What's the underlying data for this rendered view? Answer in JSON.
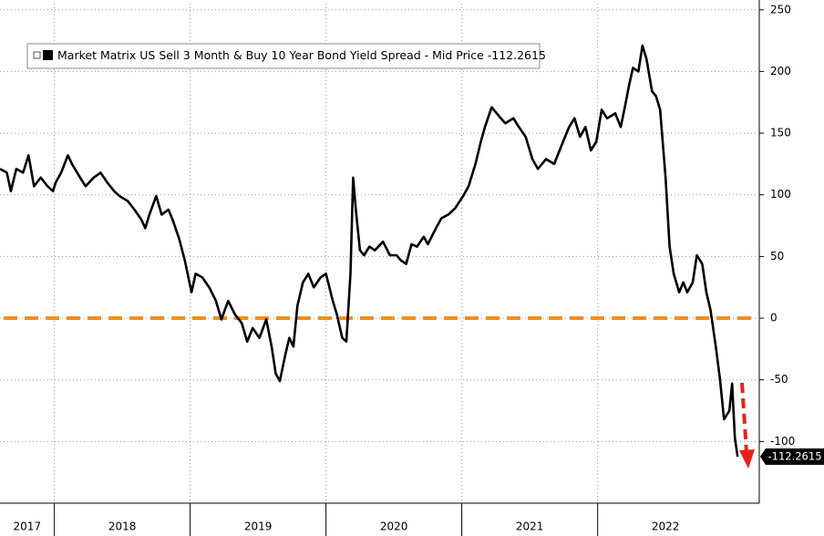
{
  "chart_data": {
    "type": "line",
    "xlim": [
      2017.6,
      2023.19
    ],
    "xticks": [
      {
        "value": 2017.6,
        "label": "2017"
      },
      2018,
      2019,
      2020,
      2021,
      2022
    ],
    "ylim": [
      -150,
      255
    ],
    "yticks": [
      -100,
      -50,
      0,
      50,
      100,
      150,
      200,
      250
    ],
    "grid": true,
    "reference_line": {
      "value": 0,
      "color": "#f0901a"
    },
    "series": [
      {
        "name": "Market Matrix US Sell 3 Month & Buy 10 Year Bond Yield Spread - Mid Price -112.2615",
        "color": "#000000",
        "x": [
          2017.6,
          2017.65,
          2017.68,
          2017.72,
          2017.77,
          2017.81,
          2017.85,
          2017.9,
          2017.95,
          2017.99,
          2018.01,
          2018.05,
          2018.1,
          2018.13,
          2018.19,
          2018.23,
          2018.29,
          2018.34,
          2018.39,
          2018.44,
          2018.48,
          2018.54,
          2018.59,
          2018.64,
          2018.67,
          2018.7,
          2018.75,
          2018.79,
          2018.84,
          2018.87,
          2018.92,
          2018.96,
          2019.01,
          2019.04,
          2019.09,
          2019.14,
          2019.19,
          2019.23,
          2019.28,
          2019.33,
          2019.38,
          2019.42,
          2019.46,
          2019.51,
          2019.56,
          2019.6,
          2019.63,
          2019.66,
          2019.7,
          2019.73,
          2019.76,
          2019.79,
          2019.83,
          2019.87,
          2019.91,
          2019.96,
          2020.0,
          2020.05,
          2020.08,
          2020.12,
          2020.15,
          2020.18,
          2020.2,
          2020.22,
          2020.25,
          2020.28,
          2020.32,
          2020.36,
          2020.42,
          2020.47,
          2020.52,
          2020.55,
          2020.59,
          2020.63,
          2020.67,
          2020.72,
          2020.75,
          2020.81,
          2020.85,
          2020.9,
          2020.95,
          2021.01,
          2021.05,
          2021.1,
          2021.14,
          2021.17,
          2021.22,
          2021.28,
          2021.32,
          2021.38,
          2021.42,
          2021.47,
          2021.52,
          2021.56,
          2021.59,
          2021.62,
          2021.68,
          2021.72,
          2021.76,
          2021.79,
          2021.83,
          2021.87,
          2021.91,
          2021.95,
          2021.99,
          2022.03,
          2022.07,
          2022.13,
          2022.17,
          2022.2,
          2022.23,
          2022.26,
          2022.3,
          2022.33,
          2022.36,
          2022.4,
          2022.43,
          2022.46,
          2022.5,
          2022.53,
          2022.56,
          2022.6,
          2022.63,
          2022.66,
          2022.7,
          2022.73,
          2022.77,
          2022.8,
          2022.83,
          2022.87,
          2022.9,
          2022.93,
          2022.97,
          2022.99,
          2023.01,
          2023.03
        ],
        "values": [
          121,
          118,
          103,
          121,
          118,
          132,
          107,
          114,
          107,
          103,
          110,
          118,
          132,
          125,
          114,
          107,
          114,
          118,
          110,
          103,
          99,
          95,
          88,
          80,
          73,
          84,
          99,
          84,
          88,
          80,
          64,
          47,
          21,
          36,
          33,
          25,
          14,
          -1,
          14,
          3,
          -4,
          -19,
          -8,
          -16,
          -1,
          -23,
          -45,
          -51,
          -30,
          -16,
          -23,
          10,
          29,
          36,
          25,
          33,
          36,
          14,
          3,
          -16,
          -19,
          36,
          114,
          88,
          55,
          51,
          58,
          55,
          62,
          51,
          51,
          47,
          44,
          60,
          58,
          66,
          60,
          73,
          81,
          84,
          89,
          99,
          107,
          125,
          143,
          155,
          171,
          163,
          158,
          162,
          155,
          147,
          129,
          121,
          125,
          129,
          125,
          136,
          147,
          155,
          162,
          147,
          155,
          136,
          143,
          169,
          162,
          166,
          155,
          171,
          188,
          203,
          200,
          221,
          210,
          184,
          180,
          169,
          114,
          58,
          36,
          21,
          29,
          21,
          29,
          51,
          44,
          21,
          7,
          -23,
          -49,
          -82,
          -75,
          -53,
          -97,
          -112.2615
        ]
      }
    ]
  }
}
